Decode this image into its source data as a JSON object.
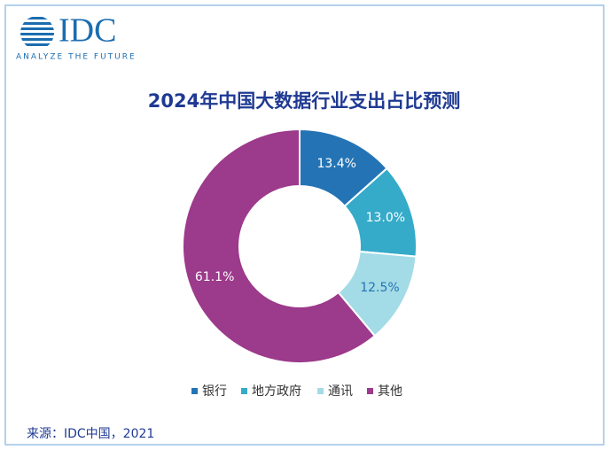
{
  "logo": {
    "name": "IDC",
    "tagline": "ANALYZE THE FUTURE"
  },
  "chart_data": {
    "type": "donut",
    "title": "2024年中国大数据行业支出占比预测",
    "categories": [
      "银行",
      "地方政府",
      "通讯",
      "其他"
    ],
    "values": [
      13.4,
      13.0,
      12.5,
      61.1
    ],
    "value_labels": [
      "13.4%",
      "13.0%",
      "12.5%",
      "61.1%"
    ],
    "colors": [
      "#2474b5",
      "#35abc9",
      "#a3dbe6",
      "#9c3a8b"
    ],
    "legend": "bottom"
  },
  "source": "来源：IDC中国，2021"
}
